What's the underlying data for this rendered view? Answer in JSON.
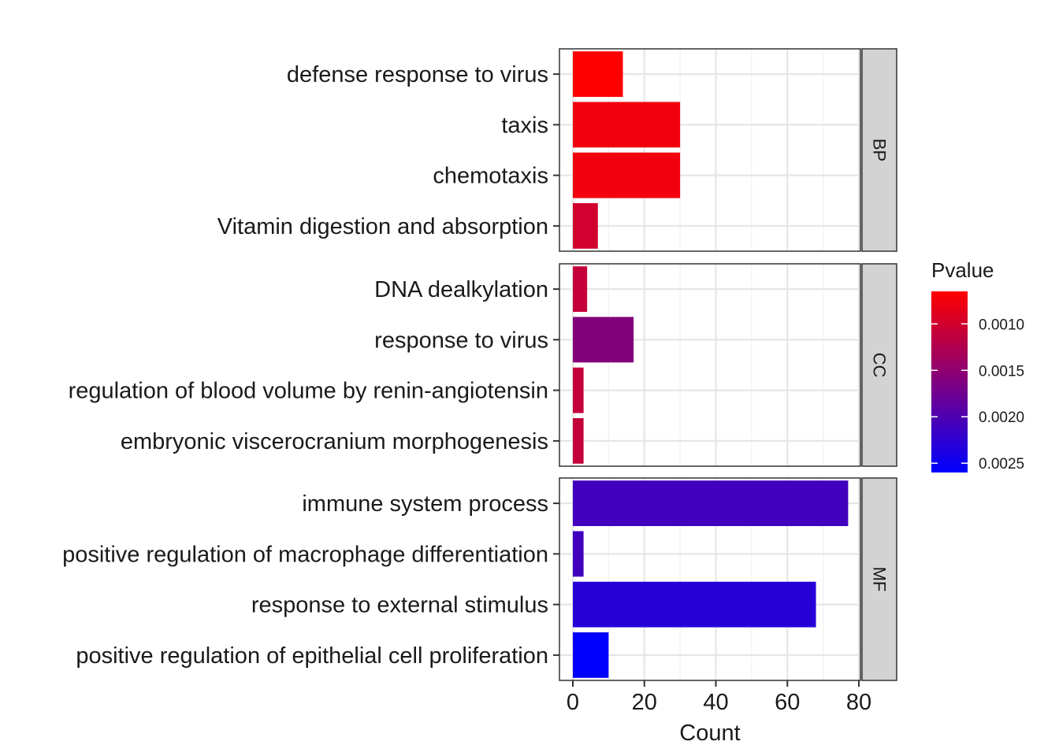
{
  "chart_data": {
    "type": "bar",
    "orientation": "horizontal",
    "facet_wrap": "rows",
    "xlabel": "Count",
    "ylabel": "",
    "xlim": [
      0,
      90
    ],
    "x_ticks": [
      0,
      20,
      40,
      60,
      80
    ],
    "grid": true,
    "legend_placement": "right",
    "facets": [
      {
        "name": "BP",
        "bars": [
          {
            "label": "defense response to virus",
            "count": 14,
            "pvalue": 0.00065
          },
          {
            "label": "taxis",
            "count": 30,
            "pvalue": 0.00075
          },
          {
            "label": "chemotaxis",
            "count": 30,
            "pvalue": 0.00075
          },
          {
            "label": "Vitamin digestion and absorption",
            "count": 7,
            "pvalue": 0.001
          }
        ]
      },
      {
        "name": "CC",
        "bars": [
          {
            "label": "DNA dealkylation",
            "count": 4,
            "pvalue": 0.0011
          },
          {
            "label": "response to virus",
            "count": 17,
            "pvalue": 0.0016
          },
          {
            "label": "regulation of blood volume by renin-angiotensin",
            "count": 3,
            "pvalue": 0.0011
          },
          {
            "label": "embryonic viscerocranium morphogenesis",
            "count": 3,
            "pvalue": 0.0011
          }
        ]
      },
      {
        "name": "MF",
        "bars": [
          {
            "label": "immune system process",
            "count": 77,
            "pvalue": 0.0021
          },
          {
            "label": "positive regulation of macrophage differentiation",
            "count": 3,
            "pvalue": 0.0021
          },
          {
            "label": "response to external stimulus",
            "count": 68,
            "pvalue": 0.0023
          },
          {
            "label": "positive regulation of epithelial cell proliferation",
            "count": 10,
            "pvalue": 0.0026
          }
        ]
      }
    ],
    "legend": {
      "title": "Pvalue",
      "ticks": [
        0.001,
        0.0015,
        0.002,
        0.0025
      ],
      "tick_labels": [
        "0.0010",
        "0.0015",
        "0.0020",
        "0.0025"
      ],
      "range": [
        0.00065,
        0.0026
      ],
      "color_low_p": "#ff0000",
      "color_high_p": "#0000ff"
    }
  }
}
